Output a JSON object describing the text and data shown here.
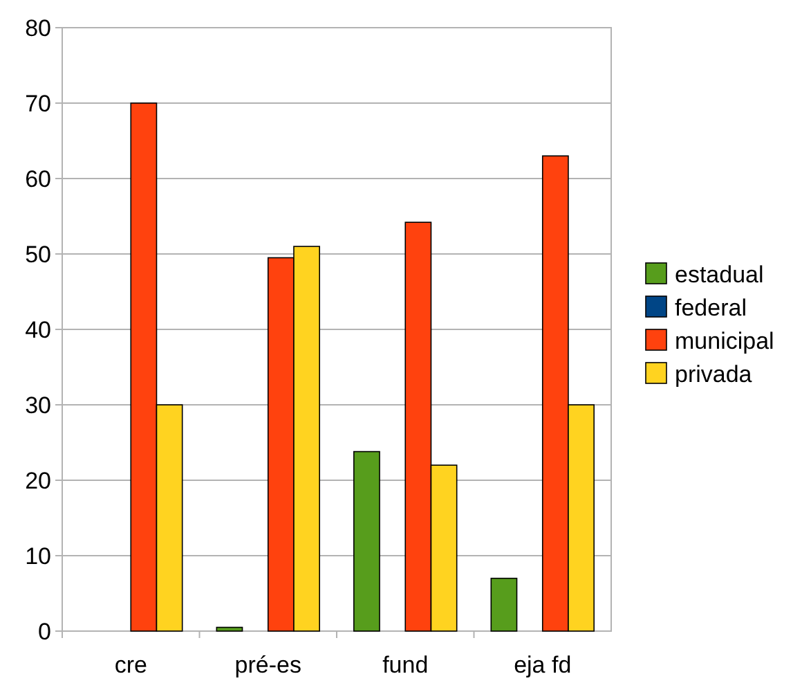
{
  "chart_data": {
    "type": "bar",
    "categories": [
      "cre",
      "pré-es",
      "fund",
      "eja fd"
    ],
    "series": [
      {
        "name": "estadual",
        "color": "#579d1c",
        "values": [
          0,
          0.5,
          23.8,
          7
        ]
      },
      {
        "name": "federal",
        "color": "#004586",
        "values": [
          0,
          0,
          0,
          0
        ]
      },
      {
        "name": "municipal",
        "color": "#ff420e",
        "values": [
          70,
          49.5,
          54.2,
          63
        ]
      },
      {
        "name": "privada",
        "color": "#ffd320",
        "values": [
          30,
          51,
          22,
          30
        ]
      }
    ],
    "ylim": [
      0,
      80
    ],
    "yticks": [
      0,
      10,
      20,
      30,
      40,
      50,
      60,
      70,
      80
    ],
    "grid": "y",
    "legend": "right"
  }
}
